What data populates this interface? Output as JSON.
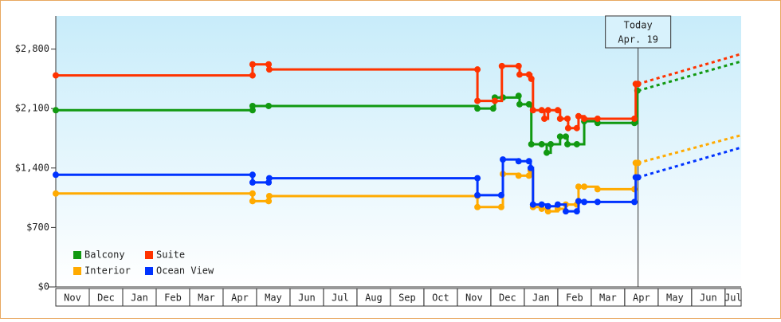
{
  "chart_data": {
    "type": "line",
    "step": true,
    "categories": [
      "Nov",
      "Dec",
      "Jan",
      "Feb",
      "Mar",
      "Apr",
      "May",
      "Jun",
      "Jul",
      "Aug",
      "Sep",
      "Oct",
      "Nov",
      "Dec",
      "Jan",
      "Feb",
      "Mar",
      "Apr",
      "May",
      "Jun",
      "Jul"
    ],
    "xlim": [
      0,
      20.48
    ],
    "ylim": [
      0,
      3190
    ],
    "yticks": [
      {
        "value": 0,
        "label": "$0"
      },
      {
        "value": 700,
        "label": "$700"
      },
      {
        "value": 1400,
        "label": "$1,400"
      },
      {
        "value": 2100,
        "label": "$2,100"
      },
      {
        "value": 2800,
        "label": "$2,800"
      }
    ],
    "grid": false,
    "legend": "lower left",
    "today_label": "Today",
    "today_date": "Apr. 19",
    "today_x": 17.4,
    "projection_x": [
      17.4,
      20.48
    ],
    "series": [
      {
        "name": "Balcony",
        "color": "#119911",
        "x": [
          0,
          5.88,
          5.88,
          6.36,
          12.6,
          13.07,
          13.12,
          13.36,
          13.83,
          13.86,
          14.14,
          14.21,
          14.52,
          14.67,
          14.79,
          15.07,
          15.24,
          15.29,
          15.57,
          15.79,
          16.19,
          17.29,
          17.38
        ],
        "values": [
          2080,
          2080,
          2130,
          2130,
          2100,
          2100,
          2230,
          2230,
          2250,
          2150,
          2150,
          1680,
          1680,
          1580,
          1680,
          1770,
          1770,
          1680,
          1680,
          1950,
          1930,
          1930,
          2310
        ],
        "projection": [
          2310,
          2655
        ]
      },
      {
        "name": "Suite",
        "color": "#ff3300",
        "x": [
          0,
          5.88,
          5.88,
          6.36,
          6.38,
          12.6,
          12.6,
          13.12,
          13.33,
          13.83,
          13.86,
          14.14,
          14.21,
          14.26,
          14.52,
          14.6,
          14.71,
          15,
          15.07,
          15.29,
          15.31,
          15.57,
          15.62,
          15.79,
          16.19,
          17.29,
          17.33,
          17.4
        ],
        "values": [
          2490,
          2490,
          2620,
          2620,
          2560,
          2560,
          2190,
          2190,
          2600,
          2600,
          2500,
          2500,
          2450,
          2080,
          2080,
          1980,
          2080,
          2080,
          1980,
          1980,
          1870,
          1870,
          2010,
          1980,
          1980,
          1980,
          2390,
          2390
        ],
        "projection": [
          2390,
          2742
        ]
      },
      {
        "name": "Interior",
        "color": "#ffaa00",
        "x": [
          0,
          5.88,
          5.88,
          6.36,
          6.38,
          12.6,
          12.6,
          13.31,
          13.36,
          13.83,
          14.14,
          14.19,
          14.26,
          14.52,
          14.71,
          15,
          15.24,
          15.57,
          15.62,
          15.79,
          16.19,
          17.29,
          17.33,
          17.4
        ],
        "values": [
          1100,
          1100,
          1010,
          1010,
          1070,
          1070,
          940,
          940,
          1330,
          1310,
          1310,
          1370,
          940,
          920,
          890,
          920,
          970,
          970,
          1180,
          1180,
          1150,
          1150,
          1460,
          1460
        ],
        "projection": [
          1460,
          1786
        ]
      },
      {
        "name": "Ocean View",
        "color": "#0033ff",
        "x": [
          0,
          5.88,
          5.88,
          6.36,
          6.38,
          12.6,
          12.6,
          13.31,
          13.36,
          13.83,
          14.14,
          14.19,
          14.26,
          14.52,
          14.71,
          15,
          15.24,
          15.57,
          15.62,
          15.79,
          16.19,
          17.29,
          17.33,
          17.4
        ],
        "values": [
          1320,
          1320,
          1230,
          1230,
          1280,
          1280,
          1080,
          1080,
          1500,
          1480,
          1480,
          1400,
          970,
          970,
          950,
          970,
          890,
          890,
          1010,
          1000,
          1000,
          1000,
          1290,
          1290
        ],
        "projection": [
          1290,
          1641
        ]
      }
    ]
  }
}
